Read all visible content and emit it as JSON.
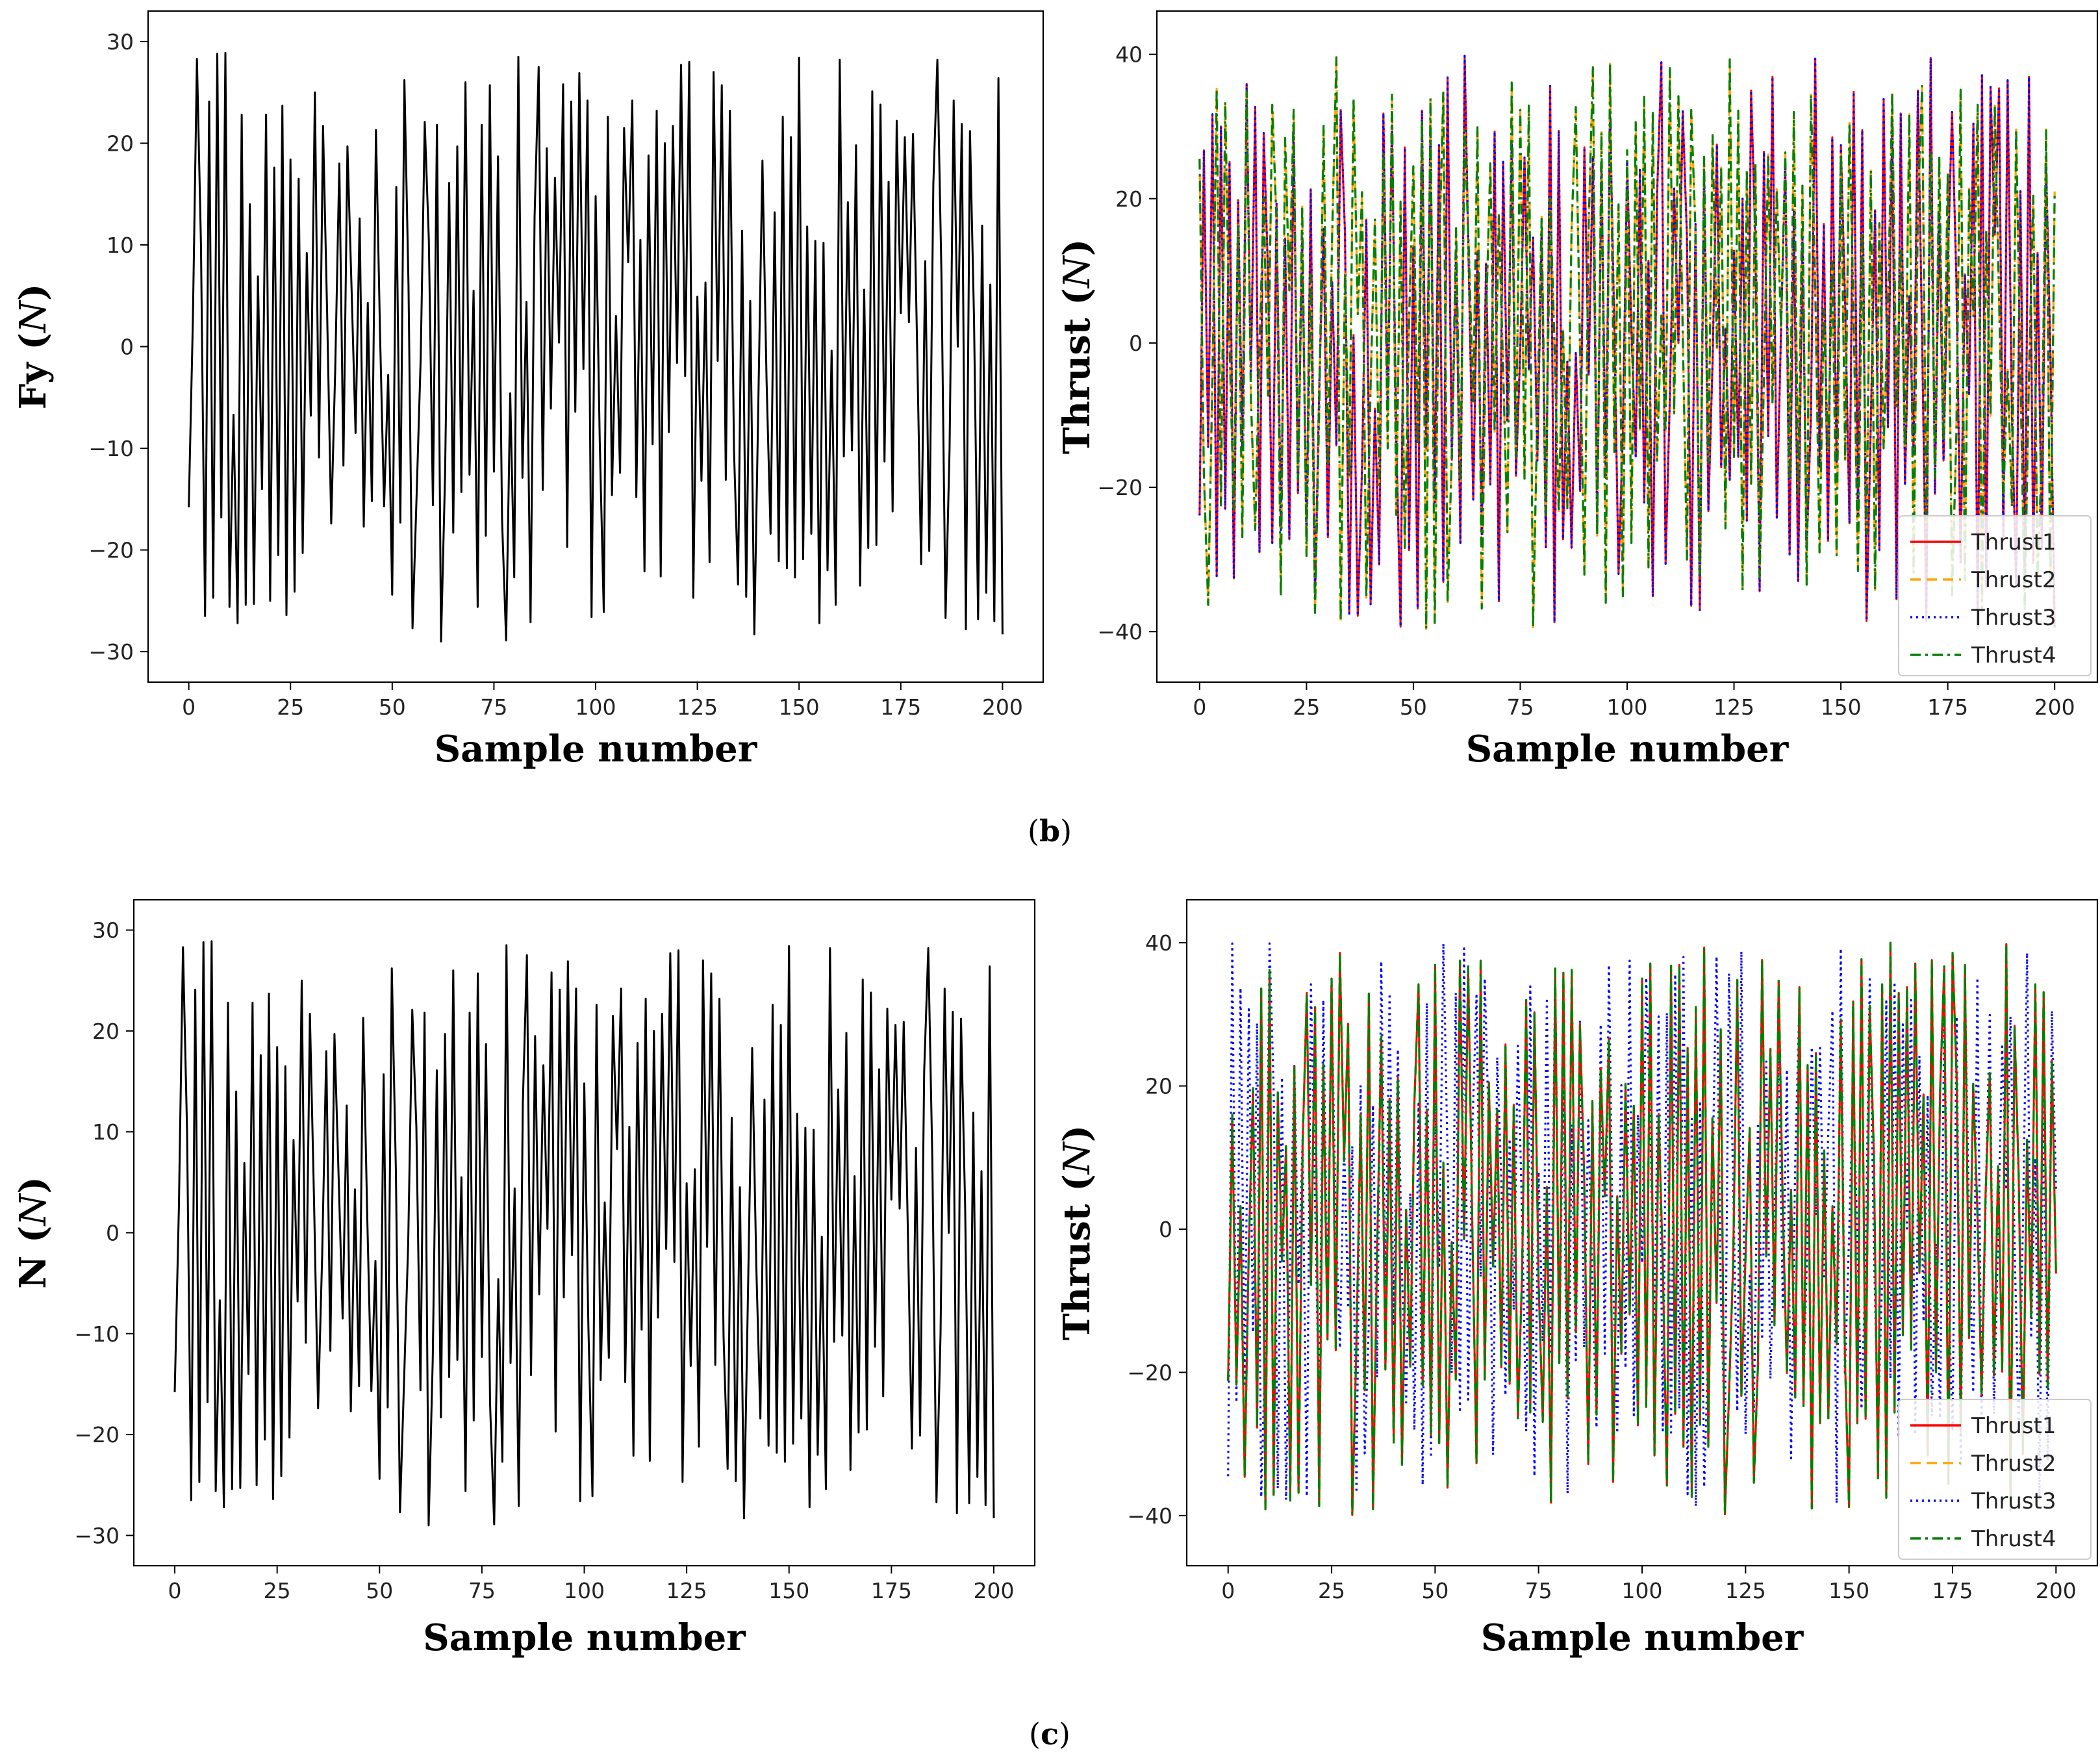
{
  "panel_captions": [
    {
      "open": "(",
      "letter": "b",
      "close": ")"
    },
    {
      "open": "(",
      "letter": "c",
      "close": ")"
    }
  ],
  "colors": {
    "Thrust1": "#ff0000",
    "Thrust2": "#ffa500",
    "Thrust3": "#0000ff",
    "Thrust4": "#008000",
    "force": "#000000"
  },
  "chart_data": [
    {
      "type": "line",
      "panel": "b",
      "position": "left",
      "xlabel": "Sample number",
      "ylabel_main": "Fy (",
      "ylabel_unit": "N",
      "ylabel_close": ")",
      "xlim": [
        -10,
        210
      ],
      "ylim": [
        -33,
        33
      ],
      "xticks": [
        0,
        25,
        50,
        75,
        100,
        125,
        150,
        175,
        200
      ],
      "yticks": [
        -30,
        -20,
        -10,
        0,
        10,
        20,
        30
      ],
      "series": [
        {
          "name": "Fy",
          "color": "#000000",
          "style": "solid",
          "generator": {
            "seed": 7,
            "amp": 29,
            "phase": 0
          }
        }
      ]
    },
    {
      "type": "line",
      "panel": "b",
      "position": "right",
      "xlabel": "Sample number",
      "ylabel_main": "Thrust (",
      "ylabel_unit": "N",
      "ylabel_close": ")",
      "xlim": [
        -10,
        210
      ],
      "ylim": [
        -47,
        46
      ],
      "xticks": [
        0,
        25,
        50,
        75,
        100,
        125,
        150,
        175,
        200
      ],
      "yticks": [
        -40,
        -20,
        0,
        20,
        40
      ],
      "legend": [
        "Thrust1",
        "Thrust2",
        "Thrust3",
        "Thrust4"
      ],
      "series": [
        {
          "name": "Thrust1",
          "color": "#ff0000",
          "style": "solid",
          "generator": {
            "seed": 11,
            "amp": 40,
            "phase": 0
          }
        },
        {
          "name": "Thrust2",
          "color": "#ffa500",
          "style": "dashed",
          "generator": {
            "seed": 23,
            "amp": 40,
            "phase": 0
          }
        },
        {
          "name": "Thrust3",
          "color": "#0000ff",
          "style": "dotted",
          "generator": {
            "seed": 11,
            "amp": 40,
            "phase": 0
          }
        },
        {
          "name": "Thrust4",
          "color": "#008000",
          "style": "dashdot",
          "generator": {
            "seed": 23,
            "amp": 40,
            "phase": 0
          }
        }
      ]
    },
    {
      "type": "line",
      "panel": "c",
      "position": "left",
      "xlabel": "Sample number",
      "ylabel_main": "N (",
      "ylabel_unit": "N",
      "ylabel_close": ")",
      "xlim": [
        -10,
        210
      ],
      "ylim": [
        -33,
        33
      ],
      "xticks": [
        0,
        25,
        50,
        75,
        100,
        125,
        150,
        175,
        200
      ],
      "yticks": [
        -30,
        -20,
        -10,
        0,
        10,
        20,
        30
      ],
      "series": [
        {
          "name": "N",
          "color": "#000000",
          "style": "solid",
          "generator": {
            "seed": 7,
            "amp": 29,
            "phase": 0
          }
        }
      ]
    },
    {
      "type": "line",
      "panel": "c",
      "position": "right",
      "xlabel": "Sample number",
      "ylabel_main": "Thrust (",
      "ylabel_unit": "N",
      "ylabel_close": ")",
      "xlim": [
        -10,
        210
      ],
      "ylim": [
        -47,
        46
      ],
      "xticks": [
        0,
        25,
        50,
        75,
        100,
        125,
        150,
        175,
        200
      ],
      "yticks": [
        -40,
        -20,
        0,
        20,
        40
      ],
      "legend": [
        "Thrust1",
        "Thrust2",
        "Thrust3",
        "Thrust4"
      ],
      "series": [
        {
          "name": "Thrust3",
          "color": "#0000ff",
          "style": "dotted",
          "generator": {
            "seed": 41,
            "amp": 40,
            "phase": 0
          }
        },
        {
          "name": "Thrust2",
          "color": "#ffa500",
          "style": "dashed",
          "generator": {
            "seed": 53,
            "amp": 40,
            "phase": 0
          }
        },
        {
          "name": "Thrust1",
          "color": "#ff0000",
          "style": "solid",
          "generator": {
            "seed": 53,
            "amp": 40,
            "phase": 0
          }
        },
        {
          "name": "Thrust4",
          "color": "#008000",
          "style": "dashdot",
          "generator": {
            "seed": 53,
            "amp": 40,
            "phase": 0
          }
        }
      ]
    }
  ]
}
